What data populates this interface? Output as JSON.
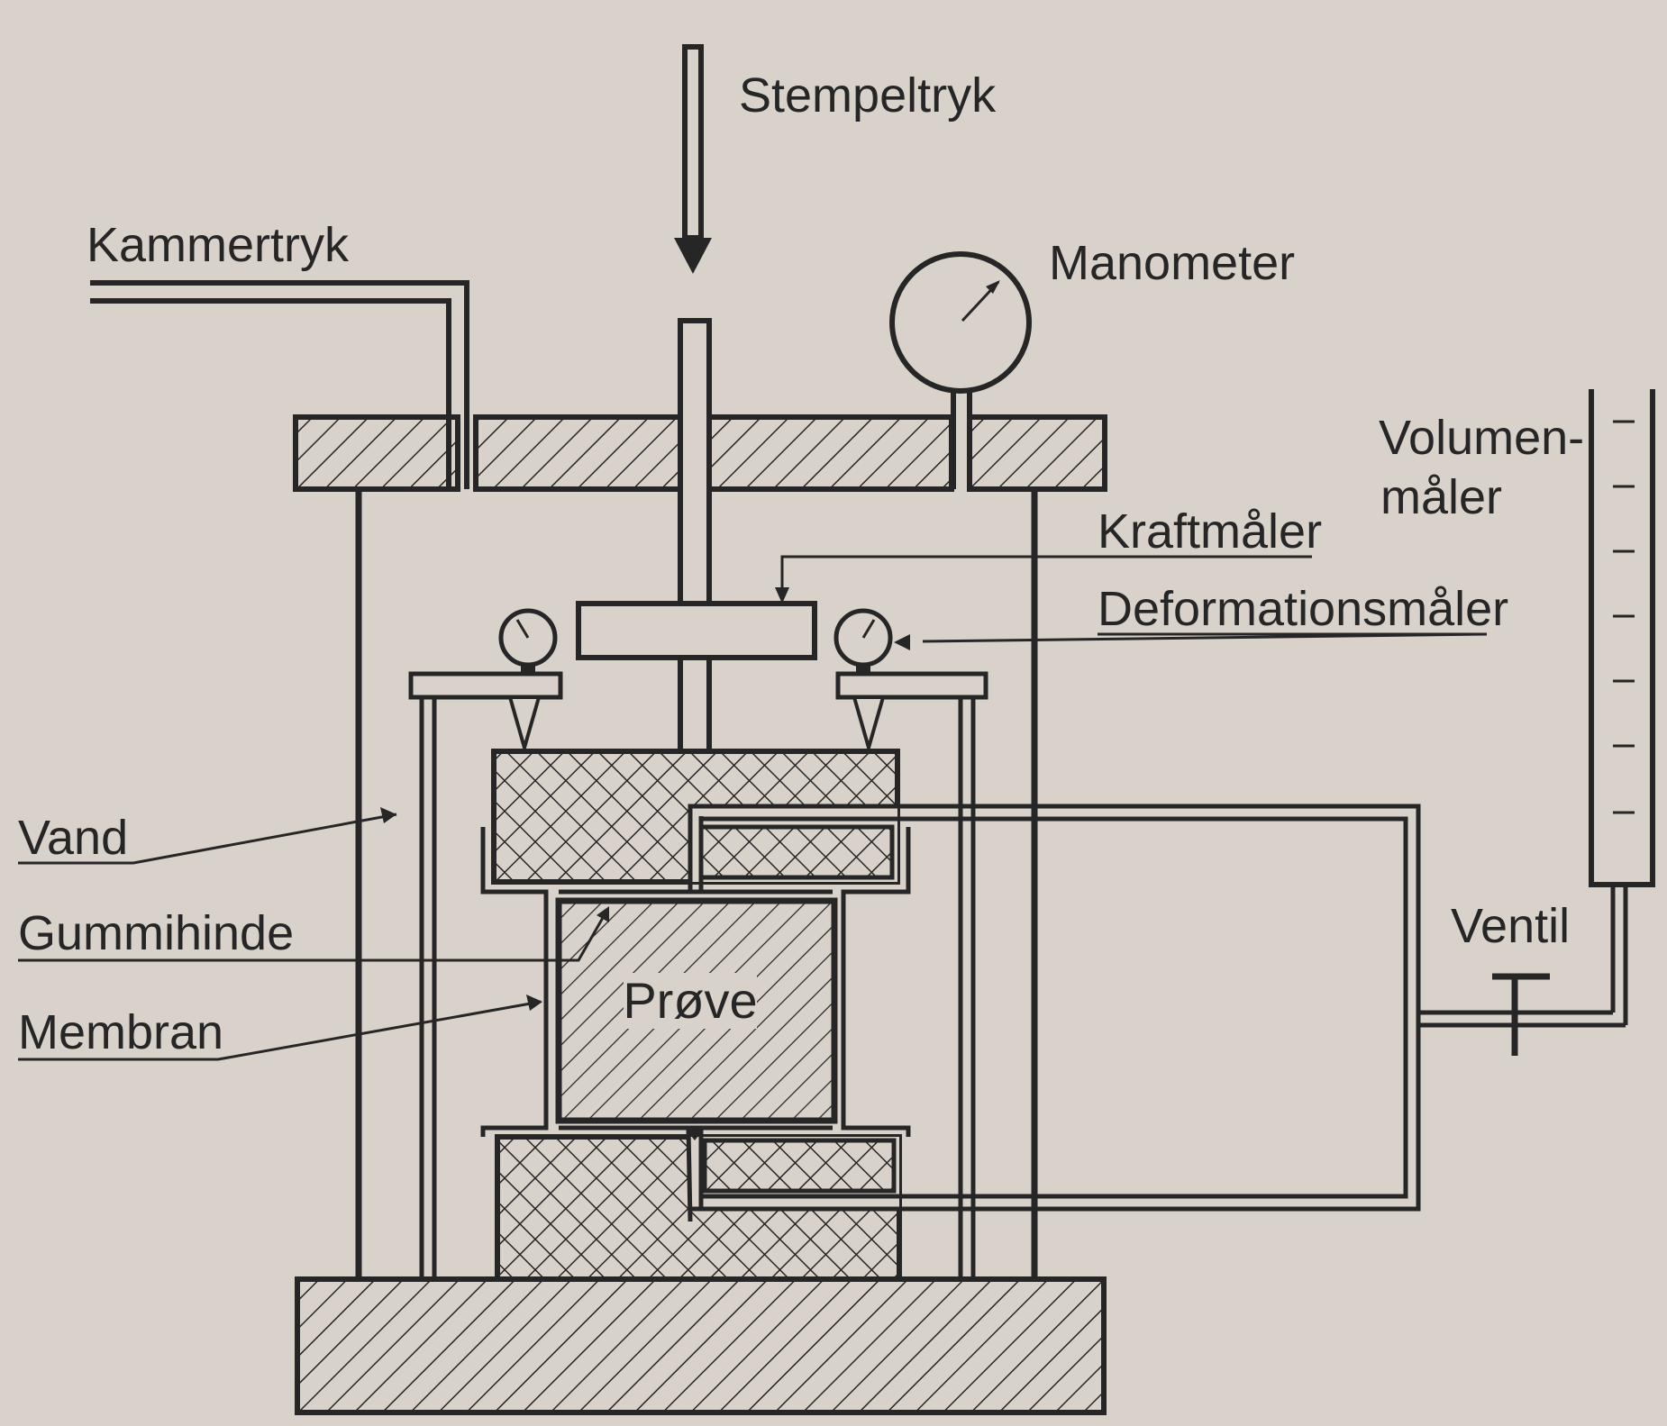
{
  "labels": {
    "stempeltryk": "Stempeltryk",
    "kammertryk": "Kammertryk",
    "manometer": "Manometer",
    "volumen_1": "Volumen-",
    "volumen_2": "måler",
    "kraftmaaler": "Kraftmåler",
    "deformationsmaaler": "Deformationsmåler",
    "vand": "Vand",
    "gummihinde": "Gummihinde",
    "membran": "Membran",
    "ventil": "Ventil",
    "proeve": "Prøve"
  },
  "colors": {
    "background": "#d9d2ca",
    "ink": "#262626"
  }
}
